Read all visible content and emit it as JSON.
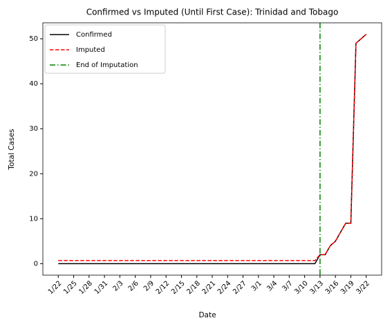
{
  "chart_data": {
    "type": "line",
    "title": "Confirmed vs Imputed (Until First Case): Trinidad and Tobago",
    "x_label": "Date",
    "y_label": "Total Cases",
    "categories": [
      "1/22",
      "1/23",
      "1/24",
      "1/25",
      "1/26",
      "1/27",
      "1/28",
      "1/29",
      "1/30",
      "1/31",
      "2/1",
      "2/2",
      "2/3",
      "2/4",
      "2/5",
      "2/6",
      "2/7",
      "2/8",
      "2/9",
      "2/10",
      "2/11",
      "2/12",
      "2/13",
      "2/14",
      "2/15",
      "2/16",
      "2/17",
      "2/18",
      "2/19",
      "2/20",
      "2/21",
      "2/22",
      "2/23",
      "2/24",
      "2/25",
      "2/26",
      "2/27",
      "2/28",
      "2/29",
      "3/1",
      "3/2",
      "3/3",
      "3/4",
      "3/5",
      "3/6",
      "3/7",
      "3/8",
      "3/9",
      "3/10",
      "3/11",
      "3/12",
      "3/13",
      "3/14",
      "3/15",
      "3/16",
      "3/17",
      "3/18",
      "3/19",
      "3/20",
      "3/21",
      "3/22"
    ],
    "series": [
      {
        "name": "Confirmed",
        "color": "#000000",
        "dash": "solid",
        "values": [
          0,
          0,
          0,
          0,
          0,
          0,
          0,
          0,
          0,
          0,
          0,
          0,
          0,
          0,
          0,
          0,
          0,
          0,
          0,
          0,
          0,
          0,
          0,
          0,
          0,
          0,
          0,
          0,
          0,
          0,
          0,
          0,
          0,
          0,
          0,
          0,
          0,
          0,
          0,
          0,
          0,
          0,
          0,
          0,
          0,
          0,
          0,
          0,
          0,
          0,
          0,
          2,
          2,
          4,
          5,
          7,
          9,
          9,
          49,
          50,
          51
        ]
      },
      {
        "name": "Imputed",
        "color": "#ff0000",
        "dash": "dashed",
        "values": [
          0.7,
          0.7,
          0.7,
          0.7,
          0.7,
          0.7,
          0.7,
          0.7,
          0.7,
          0.7,
          0.7,
          0.7,
          0.7,
          0.7,
          0.7,
          0.7,
          0.7,
          0.7,
          0.7,
          0.7,
          0.7,
          0.7,
          0.7,
          0.7,
          0.7,
          0.7,
          0.7,
          0.7,
          0.7,
          0.7,
          0.7,
          0.7,
          0.7,
          0.7,
          0.7,
          0.7,
          0.7,
          0.7,
          0.7,
          0.7,
          0.7,
          0.7,
          0.7,
          0.7,
          0.7,
          0.7,
          0.7,
          0.7,
          0.7,
          0.7,
          0.7,
          2,
          2,
          4,
          5,
          7,
          9,
          9,
          49,
          50,
          51
        ]
      }
    ],
    "vline": {
      "x": "3/13",
      "name": "End of Imputation",
      "color": "#008000",
      "dash": "dashdot"
    },
    "ylim": [
      -2.55,
      53.55
    ],
    "yticks": [
      0,
      10,
      20,
      30,
      40,
      50
    ],
    "legend": "upper left",
    "grid": false
  }
}
